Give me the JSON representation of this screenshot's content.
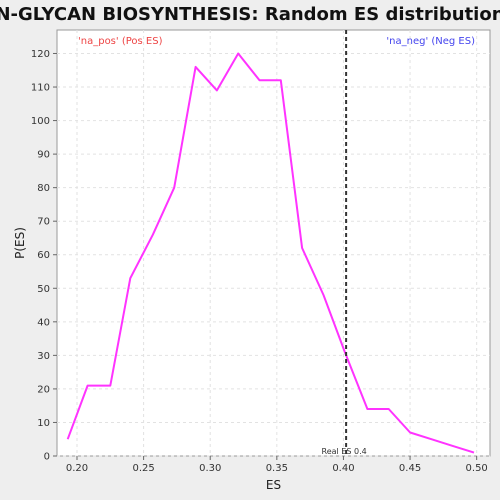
{
  "chart_data": {
    "type": "line",
    "title": "N-GLYCAN BIOSYNTHESIS: Random ES distribution",
    "xlabel": "ES",
    "ylabel": "P(ES)",
    "xlim": [
      0.185,
      0.51
    ],
    "ylim": [
      0,
      127
    ],
    "xticks": [
      0.2,
      0.25,
      0.3,
      0.35,
      0.4,
      0.45,
      0.5
    ],
    "xtick_labels": [
      "0.20",
      "0.25",
      "0.30",
      "0.35",
      "0.40",
      "0.45",
      "0.50"
    ],
    "yticks": [
      0,
      10,
      20,
      30,
      40,
      50,
      60,
      70,
      80,
      90,
      100,
      110,
      120
    ],
    "ytick_labels": [
      "0",
      "10",
      "20",
      "30",
      "40",
      "50",
      "60",
      "70",
      "80",
      "90",
      "100",
      "110",
      "120"
    ],
    "grid": true,
    "series": [
      {
        "color": "#ff33ff",
        "x": [
          0.193,
          0.208,
          0.225,
          0.24,
          0.257,
          0.273,
          0.289,
          0.305,
          0.321,
          0.337,
          0.353,
          0.369,
          0.385,
          0.401,
          0.418,
          0.434,
          0.45,
          0.466,
          0.482,
          0.498
        ],
        "y": [
          5,
          21,
          21,
          53,
          66,
          80,
          116,
          109,
          120,
          112,
          112,
          62,
          48,
          31,
          14,
          14,
          7,
          5,
          3,
          1
        ]
      }
    ],
    "marker": {
      "x": 0.402,
      "label": "Real ES 0.4",
      "color": "#333333"
    },
    "corner_labels": {
      "left": {
        "text": "'na_pos' (Pos ES)",
        "color": "#ee4444"
      },
      "right": {
        "text": "'na_neg' (Neg ES)",
        "color": "#4444ee"
      }
    }
  }
}
